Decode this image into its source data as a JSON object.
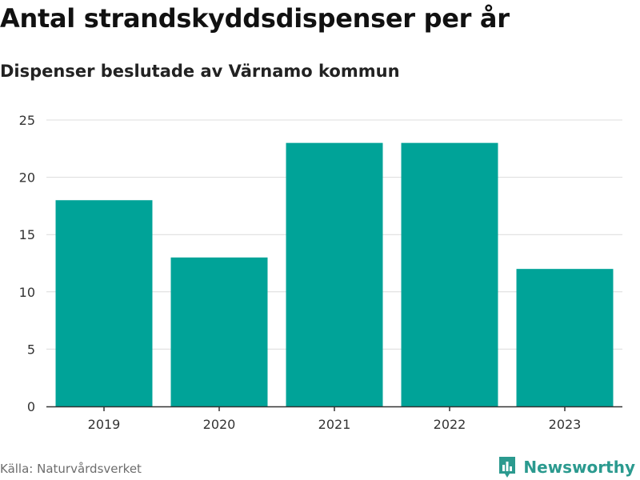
{
  "header": {
    "title": "Antal strandskyddsdispenser per år",
    "subtitle": "Dispenser beslutade av Värnamo kommun"
  },
  "footer": {
    "source": "Källa: Naturvårdsverket",
    "brand": "Newsworthy",
    "brand_icon": "newsworthy-logo-icon"
  },
  "colors": {
    "bar": "#00a398",
    "grid": "#dcdcdc",
    "axis": "#333333",
    "brand": "#2b9a8f"
  },
  "chart_data": {
    "type": "bar",
    "title": "Antal strandskyddsdispenser per år",
    "subtitle": "Dispenser beslutade av Värnamo kommun",
    "categories": [
      "2019",
      "2020",
      "2021",
      "2022",
      "2023"
    ],
    "values": [
      18,
      13,
      23,
      23,
      12
    ],
    "ylim": [
      0,
      25
    ],
    "yticks": [
      0,
      5,
      10,
      15,
      20,
      25
    ],
    "xlabel": "",
    "ylabel": "",
    "grid": true,
    "legend": "none"
  }
}
